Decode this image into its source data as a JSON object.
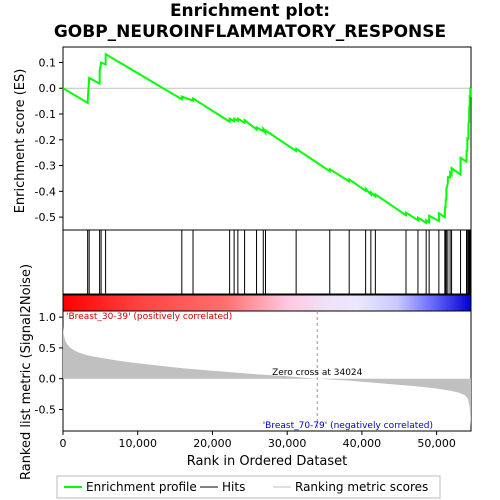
{
  "title_line1": "Enrichment plot:",
  "title_line2": "GOBP_NEUROINFLAMMATORY_RESPONSE",
  "colors": {
    "profile": "#00ff00",
    "positive_label": "#cc0000",
    "negative_label": "#0000cc",
    "metric_fill": "#c0c0c0",
    "band_positive": "#ff0000",
    "band_negative": "#0000ff"
  },
  "legend": {
    "profile_label": "Enrichment profile",
    "hits_label": "Hits",
    "metric_label": "Ranking metric scores"
  },
  "annotations": {
    "positive": "'Breast_30-39' (positively correlated)",
    "negative": "'Breast_70-79' (negatively correlated)",
    "zero_cross": "Zero cross at 34024"
  },
  "chart_data": [
    {
      "type": "line",
      "name": "enrichment",
      "ylabel": "Enrichment score (ES)",
      "xlim": [
        0,
        54600
      ],
      "ylim": [
        -0.55,
        0.16
      ],
      "yticks": [
        0.1,
        0.0,
        -0.1,
        -0.2,
        -0.3,
        -0.4,
        -0.5
      ],
      "ytick_labels": [
        "0.1",
        "0.0",
        "-0.1",
        "-0.2",
        "-0.3",
        "-0.4",
        "-0.5"
      ],
      "grid": false,
      "x": [
        0,
        3300,
        3310,
        3500,
        4900,
        4910,
        5100,
        5700,
        5710,
        15900,
        15910,
        17400,
        17410,
        22300,
        22310,
        22900,
        22910,
        23400,
        23410,
        24300,
        24310,
        25900,
        25910,
        26800,
        26810,
        27100,
        27110,
        31200,
        31210,
        35700,
        35710,
        38300,
        38310,
        40500,
        40510,
        41200,
        41210,
        41800,
        41810,
        45900,
        45910,
        47500,
        47510,
        48600,
        48610,
        49000,
        49010,
        50300,
        50310,
        51100,
        51110,
        51200,
        51210,
        51300,
        51310,
        51500,
        51510,
        51800,
        51810,
        52000,
        52010,
        53200,
        53210,
        54000,
        54010,
        54100,
        54110,
        54250,
        54260,
        54350,
        54360,
        54420,
        54430,
        54500,
        54510,
        54560
      ],
      "y": [
        0.0,
        -0.057,
        -0.048,
        0.04,
        0.018,
        0.068,
        0.1,
        0.092,
        0.132,
        -0.043,
        -0.033,
        -0.048,
        -0.04,
        -0.13,
        -0.118,
        -0.128,
        -0.118,
        -0.126,
        -0.118,
        -0.134,
        -0.124,
        -0.16,
        -0.152,
        -0.167,
        -0.158,
        -0.172,
        -0.164,
        -0.243,
        -0.235,
        -0.322,
        -0.314,
        -0.362,
        -0.354,
        -0.398,
        -0.39,
        -0.412,
        -0.404,
        -0.42,
        -0.412,
        -0.493,
        -0.483,
        -0.512,
        -0.502,
        -0.522,
        -0.512,
        -0.52,
        -0.495,
        -0.515,
        -0.485,
        -0.5,
        -0.46,
        -0.465,
        -0.428,
        -0.435,
        -0.39,
        -0.37,
        -0.345,
        -0.345,
        -0.328,
        -0.335,
        -0.31,
        -0.335,
        -0.27,
        -0.285,
        -0.24,
        -0.245,
        -0.19,
        -0.2,
        -0.13,
        -0.135,
        -0.07,
        -0.075,
        -0.03,
        -0.03,
        0.0,
        0.0
      ],
      "hits": [
        3300,
        3500,
        4900,
        5100,
        5700,
        15900,
        17400,
        22300,
        22900,
        23400,
        24300,
        25900,
        26800,
        27100,
        31200,
        35700,
        38300,
        40500,
        41200,
        41800,
        45900,
        47500,
        48600,
        49000,
        50300,
        51100,
        51200,
        51300,
        51500,
        51800,
        52000,
        53200,
        54000,
        54100,
        54250,
        54350,
        54420,
        54500
      ]
    },
    {
      "type": "area",
      "name": "ranked_metric",
      "xlabel": "Rank in Ordered Dataset",
      "ylabel": "Ranked list metric (Signal2Noise)",
      "xlim": [
        0,
        54600
      ],
      "ylim": [
        -0.85,
        1.1
      ],
      "xticks": [
        0,
        10000,
        20000,
        30000,
        40000,
        50000
      ],
      "xtick_labels": [
        "0",
        "10,000",
        "20,000",
        "30,000",
        "40,000",
        "50,000"
      ],
      "yticks": [
        1.0,
        0.5,
        0.0,
        -0.5
      ],
      "ytick_labels": [
        "1.0",
        "0.5",
        "0.0",
        "-0.5"
      ],
      "zero_cross": 34024,
      "x": [
        0,
        100,
        300,
        600,
        1000,
        1500,
        2000,
        3000,
        4000,
        5000,
        7000,
        10000,
        13000,
        16000,
        20000,
        25000,
        30000,
        34024,
        38000,
        41000,
        44000,
        47000,
        50000,
        52000,
        53000,
        53800,
        54200,
        54400,
        54500,
        54600
      ],
      "y": [
        0.85,
        0.72,
        0.62,
        0.55,
        0.5,
        0.46,
        0.43,
        0.39,
        0.36,
        0.34,
        0.3,
        0.25,
        0.21,
        0.17,
        0.13,
        0.08,
        0.04,
        0.0,
        -0.03,
        -0.06,
        -0.09,
        -0.12,
        -0.16,
        -0.2,
        -0.23,
        -0.27,
        -0.33,
        -0.45,
        -0.62,
        -0.78
      ]
    }
  ]
}
